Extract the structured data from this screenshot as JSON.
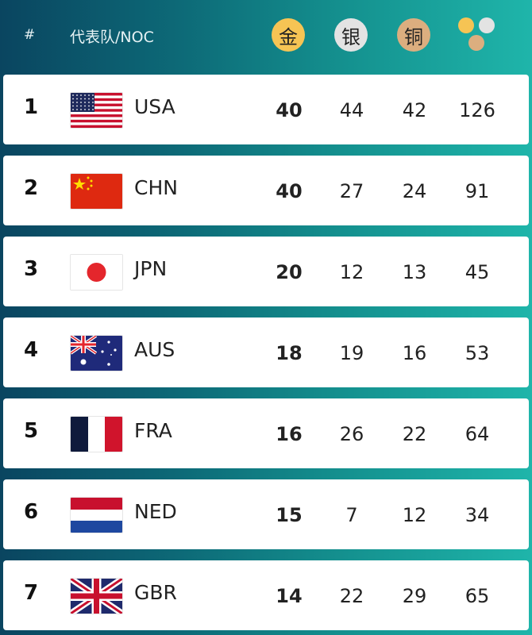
{
  "header": {
    "rank": "#",
    "noc": "代表队/NOC",
    "gold": "金",
    "silver": "银",
    "bronze": "铜",
    "total_icon": "medals-total-icon"
  },
  "colors": {
    "gold": "#f6c454",
    "silver": "#e3e3e3",
    "bronze": "#dcae7f"
  },
  "rows": [
    {
      "rank": "1",
      "noc": "USA",
      "flag": "flag-usa-icon",
      "gold": "40",
      "silver": "44",
      "bronze": "42",
      "total": "126"
    },
    {
      "rank": "2",
      "noc": "CHN",
      "flag": "flag-chn-icon",
      "gold": "40",
      "silver": "27",
      "bronze": "24",
      "total": "91"
    },
    {
      "rank": "3",
      "noc": "JPN",
      "flag": "flag-jpn-icon",
      "gold": "20",
      "silver": "12",
      "bronze": "13",
      "total": "45"
    },
    {
      "rank": "4",
      "noc": "AUS",
      "flag": "flag-aus-icon",
      "gold": "18",
      "silver": "19",
      "bronze": "16",
      "total": "53"
    },
    {
      "rank": "5",
      "noc": "FRA",
      "flag": "flag-fra-icon",
      "gold": "16",
      "silver": "26",
      "bronze": "22",
      "total": "64"
    },
    {
      "rank": "6",
      "noc": "NED",
      "flag": "flag-ned-icon",
      "gold": "15",
      "silver": "7",
      "bronze": "12",
      "total": "34"
    },
    {
      "rank": "7",
      "noc": "GBR",
      "flag": "flag-gbr-icon",
      "gold": "14",
      "silver": "22",
      "bronze": "29",
      "total": "65"
    }
  ]
}
